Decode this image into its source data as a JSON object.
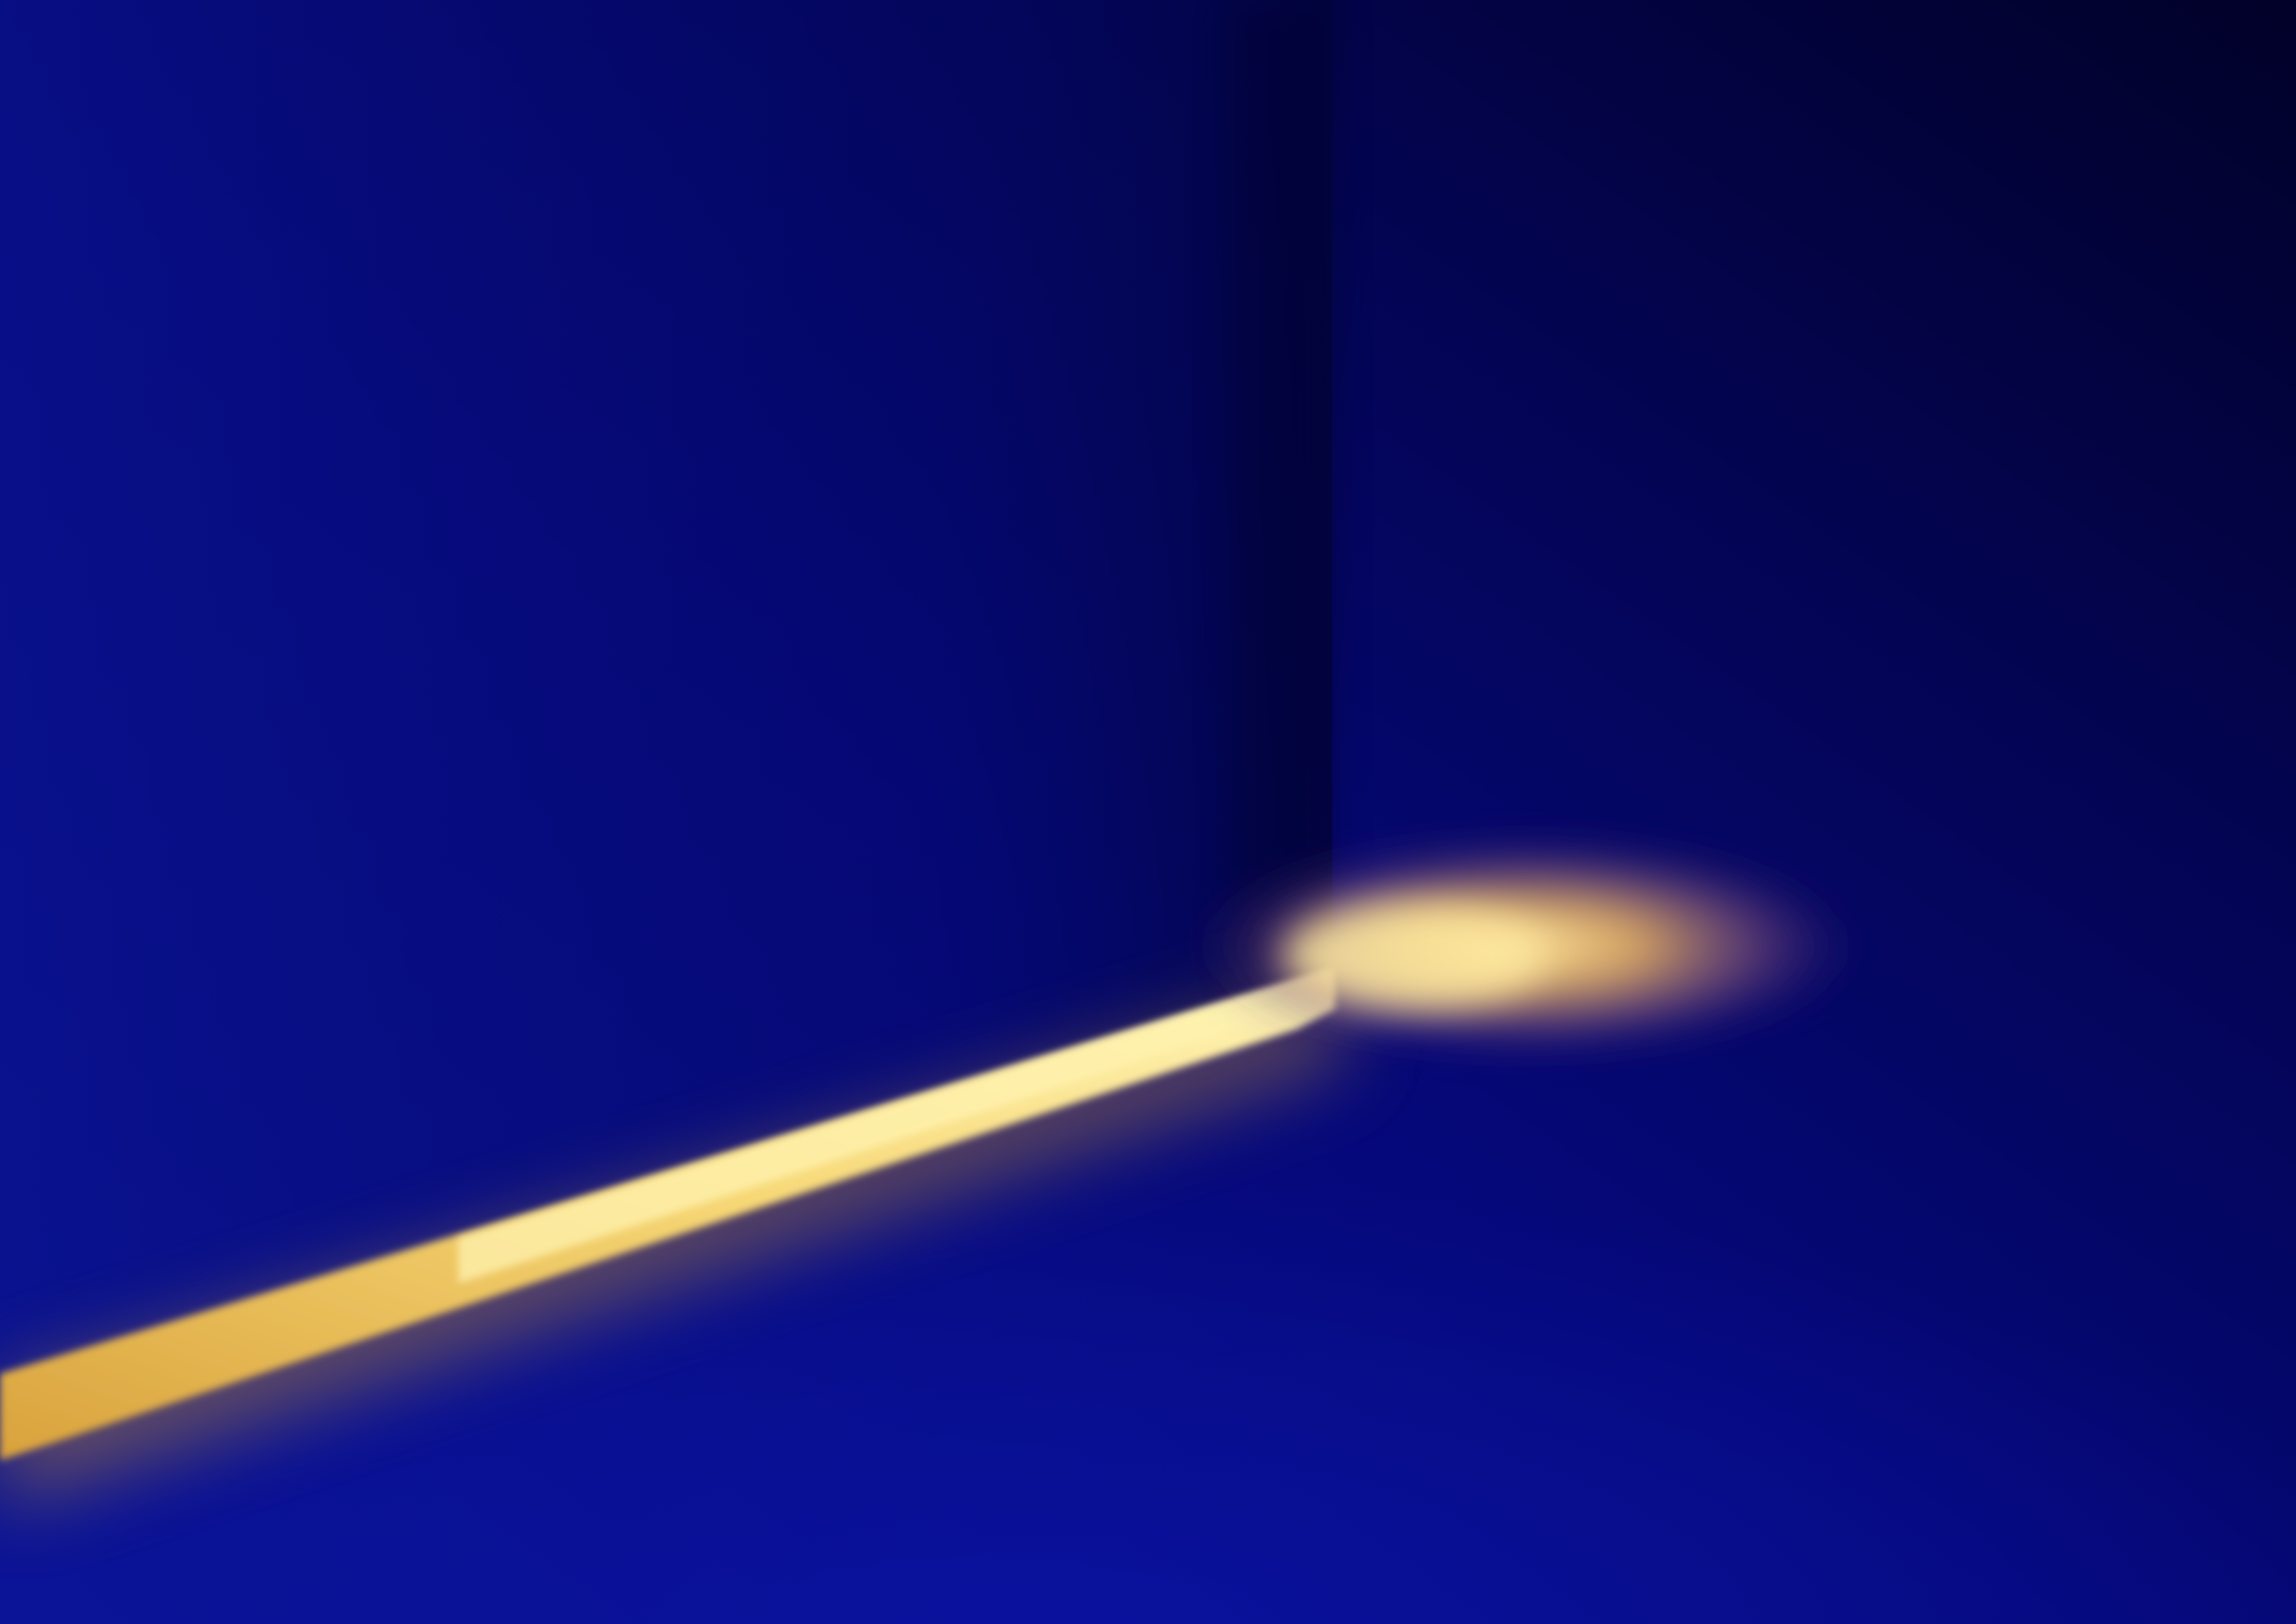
{
  "scene": {
    "kind": "abstract-light-and-shadow",
    "colors": {
      "deep_blue": "#0a1390",
      "navy": "#04065e",
      "midnight": "#02022f",
      "light_yellow": "#fff2a0",
      "amber": "#e0a838",
      "mauve_glow": "#7a4a78"
    }
  }
}
